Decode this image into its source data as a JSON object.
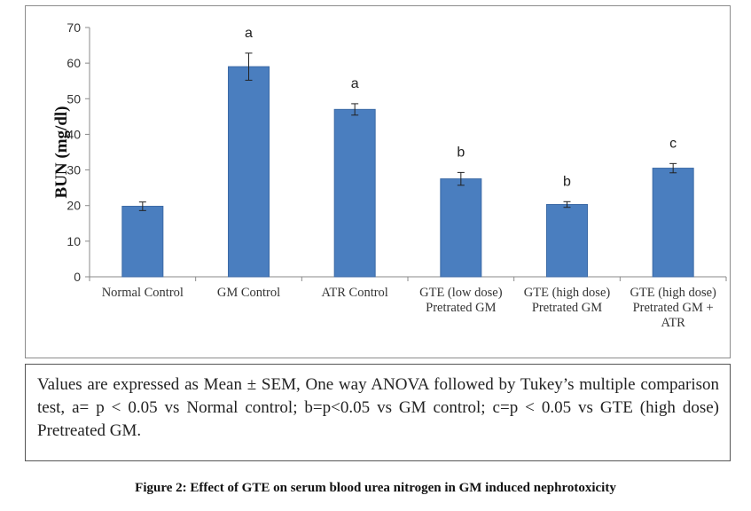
{
  "chart_data": {
    "type": "bar",
    "ylabel": "BUN (mg/dl)",
    "ylim": [
      0,
      70
    ],
    "yticks": [
      0,
      10,
      20,
      30,
      40,
      50,
      60,
      70
    ],
    "grid": false,
    "bar_color": "#4a7ebf",
    "categories": [
      [
        "Normal Control"
      ],
      [
        "GM Control"
      ],
      [
        "ATR Control"
      ],
      [
        "GTE (low dose)",
        "Pretrated GM"
      ],
      [
        "GTE (high dose)",
        "Pretrated GM"
      ],
      [
        "GTE (high dose)",
        "Pretrated GM +",
        "ATR"
      ]
    ],
    "values": [
      19.8,
      59,
      47,
      27.5,
      20.3,
      30.5
    ],
    "errors": [
      1.2,
      3.8,
      1.6,
      1.8,
      0.8,
      1.3
    ],
    "annotations": [
      "",
      "a",
      "a",
      "b",
      "b",
      "c"
    ]
  },
  "note": "Values are expressed as Mean ± SEM, One way ANOVA followed by Tukey’s multiple comparison test, a= p < 0.05 vs Normal control; b=p<0.05 vs GM control; c=p < 0.05 vs GTE (high dose) Pretreated GM.",
  "caption": "Figure 2: Effect of GTE on serum blood urea nitrogen in GM induced nephrotoxicity"
}
